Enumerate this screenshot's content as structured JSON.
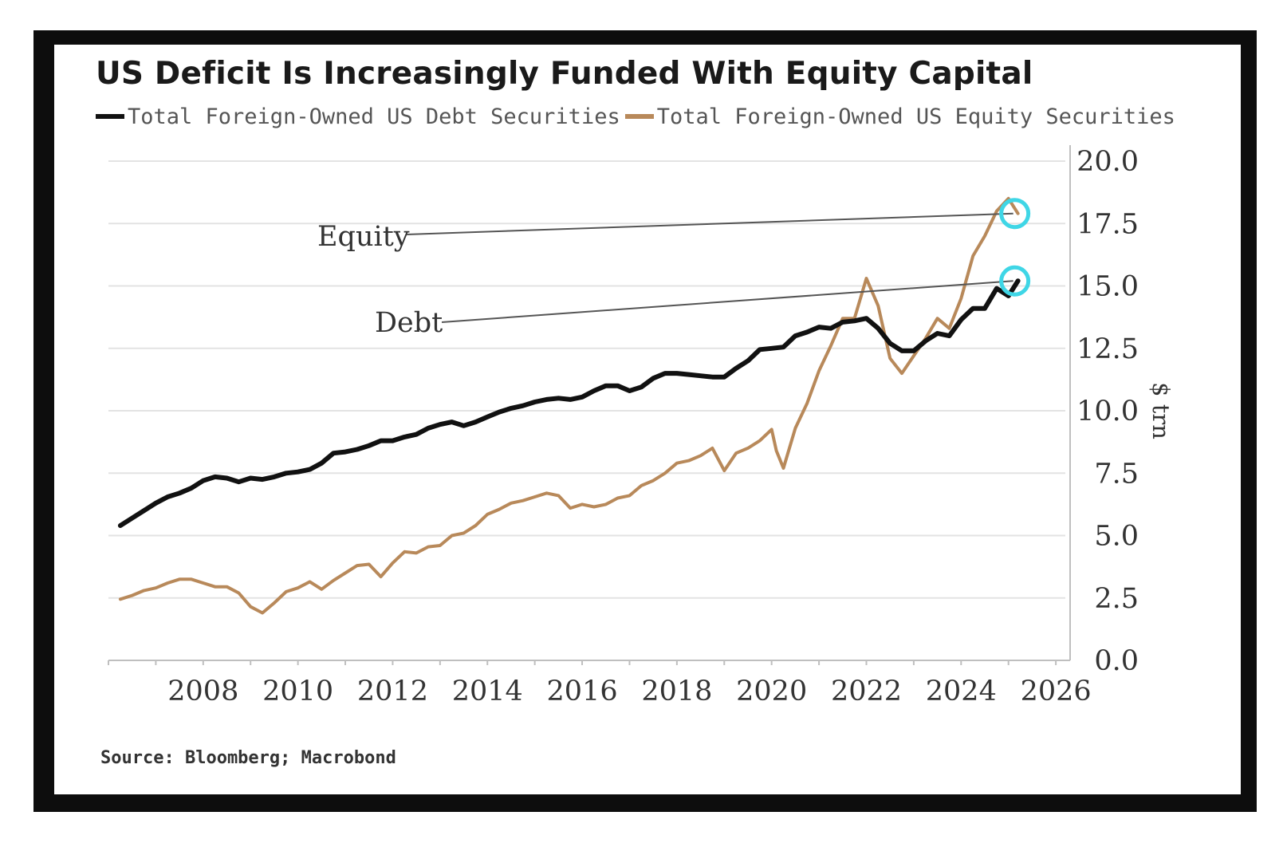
{
  "chart_data": {
    "type": "line",
    "title": "US Deficit Is Increasingly Funded With Equity Capital",
    "ylabel": "$ trn",
    "xlabel": "",
    "xlim": [
      2006,
      2026.2
    ],
    "ylim": [
      0,
      20
    ],
    "x_ticks": [
      "2008",
      "2010",
      "2012",
      "2014",
      "2016",
      "2018",
      "2020",
      "2022",
      "2024",
      "2026"
    ],
    "y_ticks": [
      "0.0",
      "2.5",
      "5.0",
      "7.5",
      "10.0",
      "12.5",
      "15.0",
      "17.5",
      "20.0"
    ],
    "grid": true,
    "legend_position": "top-left",
    "series": [
      {
        "name": "Total Foreign-Owned US Debt Securities",
        "short": "Debt",
        "color": "#111111",
        "points": [
          [
            2006.25,
            5.4
          ],
          [
            2006.5,
            5.7
          ],
          [
            2006.75,
            6.0
          ],
          [
            2007,
            6.3
          ],
          [
            2007.25,
            6.55
          ],
          [
            2007.5,
            6.7
          ],
          [
            2007.75,
            6.9
          ],
          [
            2008,
            7.2
          ],
          [
            2008.25,
            7.35
          ],
          [
            2008.5,
            7.3
          ],
          [
            2008.75,
            7.15
          ],
          [
            2009,
            7.3
          ],
          [
            2009.25,
            7.25
          ],
          [
            2009.5,
            7.35
          ],
          [
            2009.75,
            7.5
          ],
          [
            2010,
            7.55
          ],
          [
            2010.25,
            7.65
          ],
          [
            2010.5,
            7.9
          ],
          [
            2010.75,
            8.3
          ],
          [
            2011,
            8.35
          ],
          [
            2011.25,
            8.45
          ],
          [
            2011.5,
            8.6
          ],
          [
            2011.75,
            8.8
          ],
          [
            2012,
            8.8
          ],
          [
            2012.25,
            8.95
          ],
          [
            2012.5,
            9.05
          ],
          [
            2012.75,
            9.3
          ],
          [
            2013,
            9.45
          ],
          [
            2013.25,
            9.55
          ],
          [
            2013.5,
            9.4
          ],
          [
            2013.75,
            9.55
          ],
          [
            2014,
            9.75
          ],
          [
            2014.25,
            9.95
          ],
          [
            2014.5,
            10.1
          ],
          [
            2014.75,
            10.2
          ],
          [
            2015,
            10.35
          ],
          [
            2015.25,
            10.45
          ],
          [
            2015.5,
            10.5
          ],
          [
            2015.75,
            10.45
          ],
          [
            2016,
            10.55
          ],
          [
            2016.25,
            10.8
          ],
          [
            2016.5,
            11.0
          ],
          [
            2016.75,
            11.0
          ],
          [
            2017,
            10.8
          ],
          [
            2017.25,
            10.95
          ],
          [
            2017.5,
            11.3
          ],
          [
            2017.75,
            11.5
          ],
          [
            2018,
            11.5
          ],
          [
            2018.25,
            11.45
          ],
          [
            2018.5,
            11.4
          ],
          [
            2018.75,
            11.35
          ],
          [
            2019,
            11.35
          ],
          [
            2019.25,
            11.7
          ],
          [
            2019.5,
            12.0
          ],
          [
            2019.75,
            12.45
          ],
          [
            2020,
            12.5
          ],
          [
            2020.25,
            12.55
          ],
          [
            2020.5,
            13.0
          ],
          [
            2020.75,
            13.15
          ],
          [
            2021,
            13.35
          ],
          [
            2021.25,
            13.3
          ],
          [
            2021.5,
            13.55
          ],
          [
            2021.75,
            13.6
          ],
          [
            2022,
            13.7
          ],
          [
            2022.25,
            13.3
          ],
          [
            2022.5,
            12.7
          ],
          [
            2022.75,
            12.4
          ],
          [
            2023,
            12.4
          ],
          [
            2023.25,
            12.8
          ],
          [
            2023.5,
            13.1
          ],
          [
            2023.75,
            13.0
          ],
          [
            2024,
            13.65
          ],
          [
            2024.25,
            14.1
          ],
          [
            2024.5,
            14.1
          ],
          [
            2024.75,
            14.9
          ],
          [
            2025,
            14.6
          ],
          [
            2025.2,
            15.2
          ]
        ]
      },
      {
        "name": "Total Foreign-Owned US Equity Securities",
        "short": "Equity",
        "color": "#b8895a",
        "points": [
          [
            2006.25,
            2.45
          ],
          [
            2006.5,
            2.6
          ],
          [
            2006.75,
            2.8
          ],
          [
            2007,
            2.9
          ],
          [
            2007.25,
            3.1
          ],
          [
            2007.5,
            3.25
          ],
          [
            2007.75,
            3.25
          ],
          [
            2008,
            3.1
          ],
          [
            2008.25,
            2.95
          ],
          [
            2008.5,
            2.95
          ],
          [
            2008.75,
            2.7
          ],
          [
            2009,
            2.15
          ],
          [
            2009.25,
            1.9
          ],
          [
            2009.5,
            2.3
          ],
          [
            2009.75,
            2.75
          ],
          [
            2010,
            2.9
          ],
          [
            2010.25,
            3.15
          ],
          [
            2010.5,
            2.85
          ],
          [
            2010.75,
            3.2
          ],
          [
            2011,
            3.5
          ],
          [
            2011.25,
            3.8
          ],
          [
            2011.5,
            3.85
          ],
          [
            2011.75,
            3.35
          ],
          [
            2012,
            3.9
          ],
          [
            2012.25,
            4.35
          ],
          [
            2012.5,
            4.3
          ],
          [
            2012.75,
            4.55
          ],
          [
            2013,
            4.6
          ],
          [
            2013.25,
            5.0
          ],
          [
            2013.5,
            5.1
          ],
          [
            2013.75,
            5.4
          ],
          [
            2014,
            5.85
          ],
          [
            2014.25,
            6.05
          ],
          [
            2014.5,
            6.3
          ],
          [
            2014.75,
            6.4
          ],
          [
            2015,
            6.55
          ],
          [
            2015.25,
            6.7
          ],
          [
            2015.5,
            6.6
          ],
          [
            2015.75,
            6.1
          ],
          [
            2016,
            6.25
          ],
          [
            2016.25,
            6.15
          ],
          [
            2016.5,
            6.25
          ],
          [
            2016.75,
            6.5
          ],
          [
            2017,
            6.6
          ],
          [
            2017.25,
            7.0
          ],
          [
            2017.5,
            7.2
          ],
          [
            2017.75,
            7.5
          ],
          [
            2018,
            7.9
          ],
          [
            2018.25,
            8.0
          ],
          [
            2018.5,
            8.2
          ],
          [
            2018.75,
            8.5
          ],
          [
            2019,
            7.6
          ],
          [
            2019.25,
            8.3
          ],
          [
            2019.5,
            8.5
          ],
          [
            2019.75,
            8.8
          ],
          [
            2020,
            9.25
          ],
          [
            2020.1,
            8.4
          ],
          [
            2020.25,
            7.7
          ],
          [
            2020.5,
            9.3
          ],
          [
            2020.75,
            10.3
          ],
          [
            2021,
            11.6
          ],
          [
            2021.25,
            12.6
          ],
          [
            2021.5,
            13.7
          ],
          [
            2021.75,
            13.7
          ],
          [
            2022,
            15.3
          ],
          [
            2022.25,
            14.2
          ],
          [
            2022.5,
            12.1
          ],
          [
            2022.75,
            11.5
          ],
          [
            2023,
            12.2
          ],
          [
            2023.25,
            12.9
          ],
          [
            2023.5,
            13.7
          ],
          [
            2023.75,
            13.3
          ],
          [
            2024,
            14.5
          ],
          [
            2024.25,
            16.2
          ],
          [
            2024.5,
            17.0
          ],
          [
            2024.75,
            18.0
          ],
          [
            2025,
            18.5
          ],
          [
            2025.2,
            17.9
          ]
        ]
      }
    ],
    "annotations": [
      {
        "label": "Equity",
        "x": 2025.1,
        "y": 17.9,
        "ring_color": "#3fd6e6"
      },
      {
        "label": "Debt",
        "x": 2025.1,
        "y": 15.2,
        "ring_color": "#3fd6e6"
      }
    ],
    "source": "Source: Bloomberg; Macrobond"
  }
}
